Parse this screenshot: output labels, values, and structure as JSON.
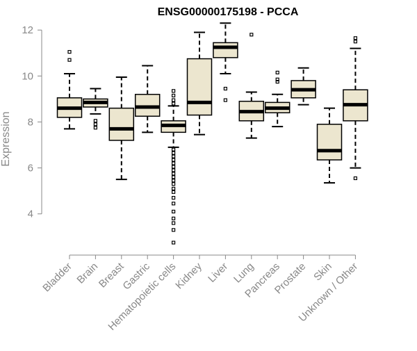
{
  "chart_data": {
    "type": "boxplot",
    "title": "ENSG00000175198 - PCCA",
    "xlabel": "",
    "ylabel": "Expression",
    "ylim": [
      2.6,
      12.4
    ],
    "yticks": [
      4,
      6,
      8,
      10,
      12
    ],
    "grid": false,
    "legend": "none",
    "colors": {
      "box_fill": "#ece6cf",
      "box_stroke": "#000000",
      "median": "#000000",
      "axis": "#888888",
      "tick_label": "#888888",
      "title": "#000000"
    },
    "categories": [
      "Bladder",
      "Brain",
      "Breast",
      "Gastric",
      "Hematopoietic cells",
      "Kidney",
      "Liver",
      "Lung",
      "Pancreas",
      "Prostate",
      "Skin",
      "Unknown / Other"
    ],
    "boxes": [
      {
        "q1": 8.2,
        "median": 8.6,
        "q3": 9.05,
        "whisker_low": 7.7,
        "whisker_high": 10.1,
        "outliers": [
          10.7,
          11.05
        ]
      },
      {
        "q1": 8.65,
        "median": 8.85,
        "q3": 9.0,
        "whisker_low": 8.35,
        "whisker_high": 9.45,
        "outliers": [
          8.05,
          7.9,
          7.75
        ]
      },
      {
        "q1": 7.2,
        "median": 7.7,
        "q3": 8.6,
        "whisker_low": 5.5,
        "whisker_high": 9.95,
        "outliers": []
      },
      {
        "q1": 8.25,
        "median": 8.65,
        "q3": 9.2,
        "whisker_low": 7.55,
        "whisker_high": 10.45,
        "outliers": []
      },
      {
        "q1": 7.55,
        "median": 7.85,
        "q3": 8.05,
        "whisker_low": 6.9,
        "whisker_high": 8.7,
        "outliers": [
          9.35,
          9.15,
          8.95,
          8.8,
          6.8,
          6.65,
          6.5,
          6.35,
          6.2,
          6.05,
          5.9,
          5.75,
          5.6,
          5.45,
          5.3,
          5.1,
          4.95,
          4.7,
          4.45,
          4.1,
          3.8,
          3.6,
          3.3,
          2.75
        ]
      },
      {
        "q1": 8.3,
        "median": 8.85,
        "q3": 10.75,
        "whisker_low": 7.45,
        "whisker_high": 11.9,
        "outliers": []
      },
      {
        "q1": 10.8,
        "median": 11.25,
        "q3": 11.45,
        "whisker_low": 10.1,
        "whisker_high": 12.3,
        "outliers": [
          9.45,
          8.95
        ]
      },
      {
        "q1": 8.05,
        "median": 8.45,
        "q3": 8.9,
        "whisker_low": 7.3,
        "whisker_high": 9.3,
        "outliers": [
          11.8
        ]
      },
      {
        "q1": 8.4,
        "median": 8.6,
        "q3": 8.85,
        "whisker_low": 7.8,
        "whisker_high": 9.2,
        "outliers": [
          10.15,
          9.85,
          9.75
        ]
      },
      {
        "q1": 9.05,
        "median": 9.4,
        "q3": 9.8,
        "whisker_low": 8.75,
        "whisker_high": 10.35,
        "outliers": []
      },
      {
        "q1": 6.35,
        "median": 6.75,
        "q3": 7.9,
        "whisker_low": 5.35,
        "whisker_high": 8.6,
        "outliers": []
      },
      {
        "q1": 8.05,
        "median": 8.75,
        "q3": 9.4,
        "whisker_low": 6.0,
        "whisker_high": 11.2,
        "outliers": [
          11.65,
          11.5,
          5.55
        ]
      }
    ]
  }
}
